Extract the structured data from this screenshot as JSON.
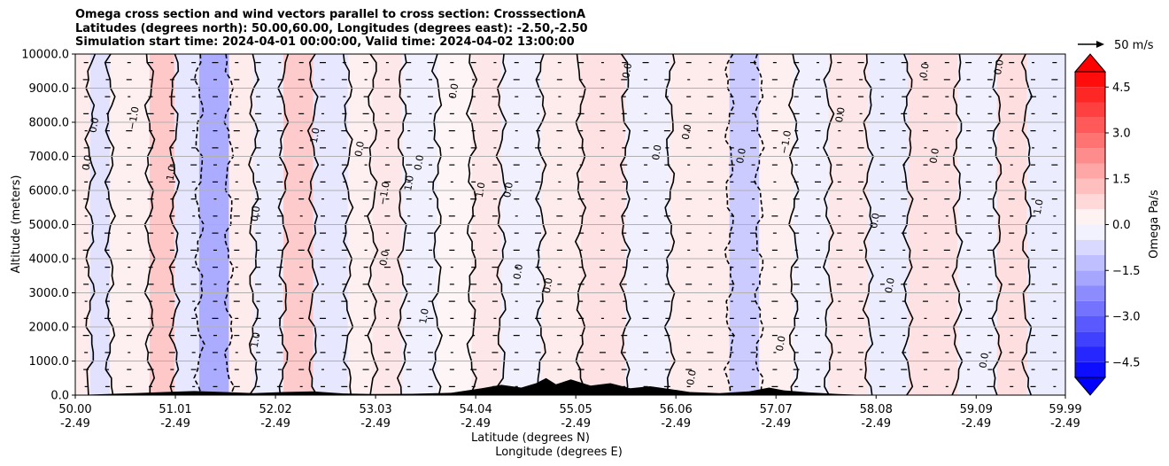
{
  "chart_data": {
    "type": "heatmap",
    "title_lines": [
      "Omega cross section and wind vectors parallel to cross section: CrosssectionA",
      "Latitudes (degrees north): 50.00,60.00, Longitudes (degrees east): -2.50,-2.50",
      "Simulation start time: 2024-04-01 00:00:00, Valid time: 2024-04-02 13:00:00"
    ],
    "xlabel": "Latitude (degrees N)",
    "xlabel2": "Longitude (degrees E)",
    "ylabel": "Altitude (meters)",
    "xlim": [
      50.0,
      59.99
    ],
    "ylim": [
      0,
      10000
    ],
    "x_ticks": [
      {
        "lat": "50.00",
        "lon": "-2.49",
        "v": 50.0
      },
      {
        "lat": "51.01",
        "lon": "-2.49",
        "v": 51.01
      },
      {
        "lat": "52.02",
        "lon": "-2.49",
        "v": 52.02
      },
      {
        "lat": "53.03",
        "lon": "-2.49",
        "v": 53.03
      },
      {
        "lat": "54.04",
        "lon": "-2.49",
        "v": 54.04
      },
      {
        "lat": "55.05",
        "lon": "-2.49",
        "v": 55.05
      },
      {
        "lat": "56.06",
        "lon": "-2.49",
        "v": 56.06
      },
      {
        "lat": "57.07",
        "lon": "-2.49",
        "v": 57.07
      },
      {
        "lat": "58.08",
        "lon": "-2.49",
        "v": 58.08
      },
      {
        "lat": "59.09",
        "lon": "-2.49",
        "v": 59.09
      },
      {
        "lat": "59.99",
        "lon": "-2.49",
        "v": 59.99
      }
    ],
    "y_ticks": [
      {
        "label": "0.0",
        "v": 0
      },
      {
        "label": "1000.0",
        "v": 1000
      },
      {
        "label": "2000.0",
        "v": 2000
      },
      {
        "label": "3000.0",
        "v": 3000
      },
      {
        "label": "4000.0",
        "v": 4000
      },
      {
        "label": "5000.0",
        "v": 5000
      },
      {
        "label": "6000.0",
        "v": 6000
      },
      {
        "label": "7000.0",
        "v": 7000
      },
      {
        "label": "8000.0",
        "v": 8000
      },
      {
        "label": "9000.0",
        "v": 9000
      },
      {
        "label": "10000.0",
        "v": 10000
      }
    ],
    "grid": true,
    "colorbar": {
      "label": "Omega Pa/s",
      "min": -5.0,
      "max": 5.0,
      "extend": "both",
      "ticks": [
        {
          "label": "4.5",
          "v": 4.5
        },
        {
          "label": "3.0",
          "v": 3.0
        },
        {
          "label": "1.5",
          "v": 1.5
        },
        {
          "label": "0.0",
          "v": 0.0
        },
        {
          "label": "−1.5",
          "v": -1.5
        },
        {
          "label": "−3.0",
          "v": -3.0
        },
        {
          "label": "−4.5",
          "v": -4.5
        }
      ],
      "colormap": "bwr"
    },
    "vector_key": {
      "label": "50 m/s",
      "value": 50
    },
    "omega_bands": [
      {
        "x0": 50.0,
        "x1": 50.15,
        "omega": 0.4
      },
      {
        "x0": 50.15,
        "x1": 50.35,
        "omega": -0.6
      },
      {
        "x0": 50.35,
        "x1": 50.75,
        "omega": 0.3
      },
      {
        "x0": 50.75,
        "x1": 51.0,
        "omega": 1.2
      },
      {
        "x0": 51.0,
        "x1": 51.25,
        "omega": -0.5
      },
      {
        "x0": 51.25,
        "x1": 51.55,
        "omega": -1.8
      },
      {
        "x0": 51.55,
        "x1": 51.8,
        "omega": 0.4
      },
      {
        "x0": 51.8,
        "x1": 52.1,
        "omega": -0.4
      },
      {
        "x0": 52.1,
        "x1": 52.4,
        "omega": 1.1
      },
      {
        "x0": 52.4,
        "x1": 52.75,
        "omega": -0.5
      },
      {
        "x0": 52.75,
        "x1": 53.0,
        "omega": 0.3
      },
      {
        "x0": 53.0,
        "x1": 53.3,
        "omega": 0.5
      },
      {
        "x0": 53.3,
        "x1": 53.65,
        "omega": -0.3
      },
      {
        "x0": 53.65,
        "x1": 54.0,
        "omega": 0.2
      },
      {
        "x0": 54.0,
        "x1": 54.3,
        "omega": 0.5
      },
      {
        "x0": 54.3,
        "x1": 54.7,
        "omega": -0.3
      },
      {
        "x0": 54.7,
        "x1": 55.1,
        "omega": 0.4
      },
      {
        "x0": 55.1,
        "x1": 55.55,
        "omega": 0.6
      },
      {
        "x0": 55.55,
        "x1": 56.0,
        "omega": -0.3
      },
      {
        "x0": 56.0,
        "x1": 56.6,
        "omega": 0.4
      },
      {
        "x0": 56.6,
        "x1": 56.9,
        "omega": -1.1
      },
      {
        "x0": 56.9,
        "x1": 57.25,
        "omega": 0.3
      },
      {
        "x0": 57.25,
        "x1": 57.6,
        "omega": -0.3
      },
      {
        "x0": 57.6,
        "x1": 58.0,
        "omega": 0.5
      },
      {
        "x0": 58.0,
        "x1": 58.4,
        "omega": -0.4
      },
      {
        "x0": 58.4,
        "x1": 58.9,
        "omega": 0.6
      },
      {
        "x0": 58.9,
        "x1": 59.3,
        "omega": -0.3
      },
      {
        "x0": 59.3,
        "x1": 59.6,
        "omega": 0.7
      },
      {
        "x0": 59.6,
        "x1": 59.99,
        "omega": -0.4
      }
    ],
    "terrain": [
      [
        50.0,
        0
      ],
      [
        50.6,
        60
      ],
      [
        50.9,
        90
      ],
      [
        51.2,
        120
      ],
      [
        51.5,
        90
      ],
      [
        51.8,
        60
      ],
      [
        52.1,
        90
      ],
      [
        52.4,
        110
      ],
      [
        52.7,
        50
      ],
      [
        53.0,
        30
      ],
      [
        53.4,
        40
      ],
      [
        53.8,
        70
      ],
      [
        54.1,
        200
      ],
      [
        54.3,
        300
      ],
      [
        54.5,
        220
      ],
      [
        54.65,
        350
      ],
      [
        54.75,
        500
      ],
      [
        54.85,
        320
      ],
      [
        55.0,
        460
      ],
      [
        55.2,
        280
      ],
      [
        55.4,
        350
      ],
      [
        55.6,
        200
      ],
      [
        55.8,
        260
      ],
      [
        56.0,
        180
      ],
      [
        56.2,
        90
      ],
      [
        56.5,
        60
      ],
      [
        56.8,
        110
      ],
      [
        57.0,
        220
      ],
      [
        57.15,
        140
      ],
      [
        57.4,
        80
      ],
      [
        57.7,
        30
      ],
      [
        58.0,
        0
      ],
      [
        59.99,
        0
      ]
    ],
    "contour_labels": [
      {
        "text": "0.0",
        "x": 50.22,
        "y": 7900
      },
      {
        "text": "0.0",
        "x": 50.15,
        "y": 6800
      },
      {
        "text": "−1.0",
        "x": 50.62,
        "y": 8100
      },
      {
        "text": "1.0",
        "x": 51.0,
        "y": 6500
      },
      {
        "text": "0.0",
        "x": 51.85,
        "y": 5300
      },
      {
        "text": "1.0",
        "x": 52.45,
        "y": 7600
      },
      {
        "text": "0.0",
        "x": 52.9,
        "y": 7200
      },
      {
        "text": "−1.0",
        "x": 53.15,
        "y": 5900
      },
      {
        "text": "1.0",
        "x": 53.4,
        "y": 6200
      },
      {
        "text": "0.0",
        "x": 53.5,
        "y": 6800
      },
      {
        "text": "0.0",
        "x": 53.15,
        "y": 4000
      },
      {
        "text": "1.0",
        "x": 53.55,
        "y": 2300
      },
      {
        "text": "0.0",
        "x": 53.85,
        "y": 8900
      },
      {
        "text": "1.0",
        "x": 54.12,
        "y": 6000
      },
      {
        "text": "0.0",
        "x": 54.4,
        "y": 6000
      },
      {
        "text": "0.0",
        "x": 54.5,
        "y": 3600
      },
      {
        "text": "0.0",
        "x": 54.8,
        "y": 3200
      },
      {
        "text": "0.0",
        "x": 55.6,
        "y": 9500
      },
      {
        "text": "0.0",
        "x": 55.9,
        "y": 7100
      },
      {
        "text": "0.0",
        "x": 56.2,
        "y": 7700
      },
      {
        "text": "0.0",
        "x": 56.75,
        "y": 7000
      },
      {
        "text": "−1.0",
        "x": 57.2,
        "y": 7400
      },
      {
        "text": "0.0",
        "x": 57.75,
        "y": 8200
      },
      {
        "text": "0.0",
        "x": 58.1,
        "y": 5100
      },
      {
        "text": "0.0",
        "x": 58.25,
        "y": 3200
      },
      {
        "text": "0.0",
        "x": 58.6,
        "y": 9500
      },
      {
        "text": "0.0",
        "x": 58.7,
        "y": 7000
      },
      {
        "text": "0.0",
        "x": 59.35,
        "y": 9600
      },
      {
        "text": "1.0",
        "x": 59.75,
        "y": 5500
      },
      {
        "text": "0.0",
        "x": 59.2,
        "y": 1000
      },
      {
        "text": "0.0",
        "x": 57.15,
        "y": 1500
      },
      {
        "text": "1.0",
        "x": 51.85,
        "y": 1600
      },
      {
        "text": "0.0",
        "x": 56.25,
        "y": 500
      }
    ]
  }
}
